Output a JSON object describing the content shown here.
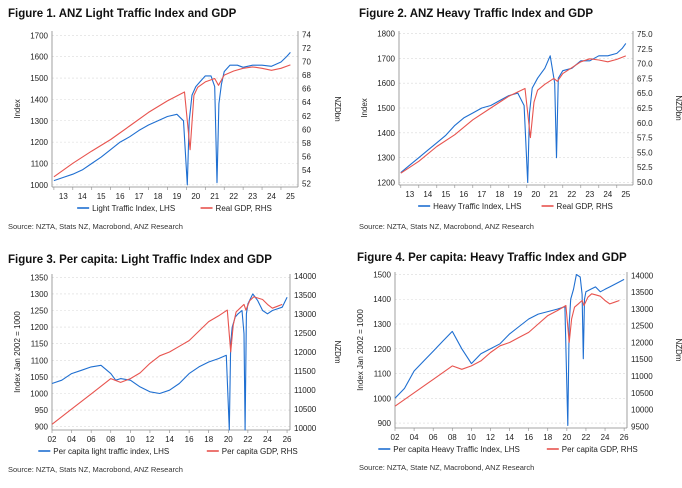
{
  "colors": {
    "lhs": "#1f6fd1",
    "rhs": "#e8544f",
    "grid": "#d9d9d9",
    "axis": "#888888"
  },
  "charts": [
    {
      "id": "fig1",
      "title": "Figure 1. ANZ Light Traffic Index and GDP",
      "source": "Source: NZTA, Stats NZ, Macrobond, ANZ Research",
      "legend": {
        "lhs": "Light Traffic Index, LHS",
        "rhs": "Real GDP, RHS"
      }
    },
    {
      "id": "fig2",
      "title": "Figure 2. ANZ Heavy Traffic Index and GDP",
      "source": "Source: NZTA, Stats NZ, Macrobond, ANZ Research",
      "legend": {
        "lhs": "Heavy Traffic Index, LHS",
        "rhs": "Real GDP, RHS"
      }
    },
    {
      "id": "fig3",
      "title": "Figure 3. Per capita: Light Traffic Index and GDP",
      "source": "Source: NZTA, Stats NZ, Macrobond, ANZ Research",
      "legend": {
        "lhs": "Per capita light traffic index, LHS",
        "rhs": "Per capita GDP, RHS"
      }
    },
    {
      "id": "fig4",
      "title": "Figure 4. Per capita: Heavy Traffic Index and GDP",
      "source": "Source: NZTA, State NZ, Macrobond, ANZ Research",
      "legend": {
        "lhs": "Per capita Heavy Traffic Index, LHS",
        "rhs": "Per capita GDP, RHS"
      }
    }
  ],
  "chart_data": [
    {
      "type": "line",
      "title": "Figure 1. ANZ Light Traffic Index and GDP",
      "ylabel": "Index",
      "y2label": "NZDbn",
      "xlim": [
        2012.9,
        2025.9
      ],
      "ylim": [
        990,
        1720
      ],
      "y2lim": [
        51.5,
        74.5
      ],
      "xticks": [
        2013,
        2014,
        2015,
        2016,
        2017,
        2018,
        2019,
        2020,
        2021,
        2022,
        2023,
        2024,
        2025
      ],
      "xticklabels": [
        "13",
        "14",
        "15",
        "16",
        "17",
        "18",
        "19",
        "20",
        "21",
        "22",
        "23",
        "24",
        "25"
      ],
      "yticks": [
        1000,
        1100,
        1200,
        1300,
        1400,
        1500,
        1600,
        1700
      ],
      "y2ticks": [
        52,
        54,
        56,
        58,
        60,
        62,
        64,
        66,
        68,
        70,
        72,
        74
      ],
      "series": [
        {
          "name": "Light Traffic Index, LHS",
          "axis": "left",
          "x": [
            2013.0,
            2013.5,
            2014.0,
            2014.5,
            2015.0,
            2015.5,
            2016.0,
            2016.5,
            2017.0,
            2017.5,
            2018.0,
            2018.5,
            2019.0,
            2019.5,
            2019.85,
            2020.05,
            2020.15,
            2020.3,
            2020.5,
            2020.7,
            2021.0,
            2021.3,
            2021.5,
            2021.62,
            2021.72,
            2021.85,
            2022.0,
            2022.3,
            2022.7,
            2023.0,
            2023.5,
            2024.0,
            2024.5,
            2025.0,
            2025.3,
            2025.5
          ],
          "y": [
            1020,
            1035,
            1050,
            1070,
            1100,
            1130,
            1165,
            1200,
            1225,
            1255,
            1280,
            1300,
            1320,
            1330,
            1300,
            1000,
            1300,
            1420,
            1460,
            1480,
            1510,
            1510,
            1460,
            1010,
            1380,
            1470,
            1530,
            1560,
            1560,
            1550,
            1560,
            1560,
            1555,
            1575,
            1600,
            1620
          ]
        },
        {
          "name": "Real GDP, RHS",
          "axis": "right",
          "x": [
            2013.0,
            2014.0,
            2015.0,
            2016.0,
            2017.0,
            2018.0,
            2019.0,
            2019.9,
            2020.2,
            2020.4,
            2020.6,
            2021.0,
            2021.5,
            2021.7,
            2022.0,
            2022.5,
            2023.0,
            2023.5,
            2024.0,
            2024.5,
            2025.0,
            2025.5
          ],
          "y": [
            53.0,
            55.0,
            56.8,
            58.5,
            60.5,
            62.5,
            64.2,
            65.5,
            57.0,
            65.0,
            66.2,
            67.0,
            67.5,
            66.5,
            68.0,
            68.6,
            69.0,
            69.2,
            69.0,
            68.7,
            69.0,
            69.5
          ]
        }
      ]
    },
    {
      "type": "line",
      "title": "Figure 2. ANZ Heavy Traffic Index and GDP",
      "ylabel": "Index",
      "y2label": "NZDbn",
      "xlim": [
        2012.9,
        2025.9
      ],
      "ylim": [
        1190,
        1810
      ],
      "y2lim": [
        49.5,
        75.5
      ],
      "xticks": [
        2013,
        2014,
        2015,
        2016,
        2017,
        2018,
        2019,
        2020,
        2021,
        2022,
        2023,
        2024,
        2025
      ],
      "xticklabels": [
        "13",
        "14",
        "15",
        "16",
        "17",
        "18",
        "19",
        "20",
        "21",
        "22",
        "23",
        "24",
        "25"
      ],
      "yticks": [
        1200,
        1300,
        1400,
        1500,
        1600,
        1700,
        1800
      ],
      "y2ticks": [
        50.0,
        52.5,
        55.0,
        57.5,
        60.0,
        62.5,
        65.0,
        67.5,
        70.0,
        72.5,
        75.0
      ],
      "series": [
        {
          "name": "Heavy Traffic Index, LHS",
          "axis": "left",
          "x": [
            2013.0,
            2013.5,
            2014.0,
            2014.5,
            2015.0,
            2015.5,
            2016.0,
            2016.5,
            2017.0,
            2017.5,
            2018.0,
            2018.5,
            2019.0,
            2019.5,
            2019.85,
            2020.05,
            2020.15,
            2020.3,
            2020.6,
            2020.8,
            2021.0,
            2021.3,
            2021.55,
            2021.65,
            2021.75,
            2022.0,
            2022.5,
            2023.0,
            2023.5,
            2024.0,
            2024.5,
            2025.0,
            2025.3,
            2025.5
          ],
          "y": [
            1240,
            1270,
            1300,
            1330,
            1360,
            1390,
            1430,
            1460,
            1480,
            1500,
            1510,
            1530,
            1550,
            1560,
            1510,
            1200,
            1480,
            1580,
            1620,
            1640,
            1660,
            1710,
            1600,
            1300,
            1620,
            1650,
            1660,
            1690,
            1690,
            1710,
            1710,
            1720,
            1740,
            1760
          ]
        },
        {
          "name": "Real GDP, RHS",
          "axis": "right",
          "x": [
            2013.0,
            2014.0,
            2015.0,
            2016.0,
            2017.0,
            2018.0,
            2019.0,
            2019.9,
            2020.2,
            2020.4,
            2020.6,
            2021.0,
            2021.5,
            2021.7,
            2022.0,
            2022.5,
            2023.0,
            2023.5,
            2024.0,
            2024.5,
            2025.0,
            2025.5
          ],
          "y": [
            51.5,
            53.5,
            56.0,
            58.0,
            60.5,
            62.5,
            64.5,
            65.8,
            57.5,
            63.5,
            65.5,
            66.5,
            67.5,
            67.0,
            68.3,
            69.3,
            70.3,
            70.8,
            70.6,
            70.3,
            70.7,
            71.3
          ]
        }
      ]
    },
    {
      "type": "line",
      "title": "Figure 3. Per capita: Light Traffic Index and GDP",
      "ylabel": "Index Jan 2002 = 1000",
      "y2label": "NZDm",
      "xlim": [
        2002.0,
        2026.3
      ],
      "ylim": [
        890,
        1360
      ],
      "y2lim": [
        9950,
        14050
      ],
      "xticks": [
        2002,
        2004,
        2006,
        2008,
        2010,
        2012,
        2014,
        2016,
        2018,
        2020,
        2022,
        2024,
        2026
      ],
      "xticklabels": [
        "02",
        "04",
        "06",
        "08",
        "10",
        "12",
        "14",
        "16",
        "18",
        "20",
        "22",
        "24",
        "26"
      ],
      "yticks": [
        900,
        950,
        1000,
        1050,
        1100,
        1150,
        1200,
        1250,
        1300,
        1350
      ],
      "y2ticks": [
        10000,
        10500,
        11000,
        11500,
        12000,
        12500,
        13000,
        13500,
        14000
      ],
      "series": [
        {
          "name": "Per capita light traffic index, LHS",
          "axis": "left",
          "x": [
            2002.0,
            2003.0,
            2004.0,
            2005.0,
            2006.0,
            2007.0,
            2008.0,
            2008.5,
            2009.0,
            2010.0,
            2011.0,
            2012.0,
            2013.0,
            2014.0,
            2015.0,
            2016.0,
            2017.0,
            2018.0,
            2019.0,
            2019.8,
            2020.1,
            2020.25,
            2020.4,
            2020.7,
            2021.0,
            2021.4,
            2021.6,
            2021.72,
            2021.85,
            2022.0,
            2022.5,
            2023.0,
            2023.5,
            2024.0,
            2024.5,
            2025.0,
            2025.5,
            2026.0
          ],
          "y": [
            1030,
            1040,
            1060,
            1070,
            1080,
            1085,
            1060,
            1040,
            1045,
            1040,
            1020,
            1005,
            1000,
            1010,
            1030,
            1060,
            1080,
            1095,
            1105,
            1115,
            890,
            1150,
            1200,
            1230,
            1240,
            1250,
            1180,
            890,
            1240,
            1270,
            1300,
            1280,
            1250,
            1240,
            1250,
            1255,
            1260,
            1290
          ]
        },
        {
          "name": "Per capita GDP, RHS",
          "axis": "right",
          "x": [
            2002.0,
            2004.0,
            2006.0,
            2008.0,
            2009.0,
            2010.0,
            2011.0,
            2012.0,
            2013.0,
            2014.0,
            2015.0,
            2016.0,
            2017.0,
            2018.0,
            2019.0,
            2019.9,
            2020.25,
            2020.5,
            2020.8,
            2021.2,
            2021.6,
            2021.8,
            2022.2,
            2022.6,
            2023.0,
            2023.5,
            2024.0,
            2024.5,
            2025.0,
            2025.5
          ],
          "y": [
            10100,
            10500,
            10900,
            11300,
            11200,
            11300,
            11450,
            11700,
            11900,
            12000,
            12150,
            12300,
            12550,
            12800,
            12950,
            13100,
            12000,
            12700,
            13050,
            13150,
            13250,
            13100,
            13350,
            13450,
            13420,
            13380,
            13250,
            13150,
            13200,
            13250
          ]
        }
      ]
    },
    {
      "type": "line",
      "title": "Figure 4. Per capita: Heavy Traffic Index and GDP",
      "ylabel": "Index Jan 2002 = 1000",
      "y2label": "NZDm",
      "xlim": [
        2002.0,
        2026.3
      ],
      "ylim": [
        880,
        1510
      ],
      "y2lim": [
        9450,
        14100
      ],
      "xticks": [
        2002,
        2004,
        2006,
        2008,
        2010,
        2012,
        2014,
        2016,
        2018,
        2020,
        2022,
        2024,
        2026
      ],
      "xticklabels": [
        "02",
        "04",
        "06",
        "08",
        "10",
        "12",
        "14",
        "16",
        "18",
        "20",
        "22",
        "24",
        "26"
      ],
      "yticks": [
        900,
        1000,
        1100,
        1200,
        1300,
        1400,
        1500
      ],
      "y2ticks": [
        9500,
        10000,
        10500,
        11000,
        11500,
        12000,
        12500,
        13000,
        13500,
        14000
      ],
      "series": [
        {
          "name": "Per capita Heavy Traffic Index, LHS",
          "axis": "left",
          "x": [
            2002.0,
            2003.0,
            2004.0,
            2005.0,
            2006.0,
            2007.0,
            2008.0,
            2009.0,
            2010.0,
            2011.0,
            2012.0,
            2013.0,
            2014.0,
            2015.0,
            2016.0,
            2017.0,
            2018.0,
            2019.0,
            2019.8,
            2020.1,
            2020.25,
            2020.4,
            2020.7,
            2021.0,
            2021.4,
            2021.6,
            2021.72,
            2021.85,
            2022.0,
            2022.5,
            2023.0,
            2023.5,
            2024.0,
            2024.5,
            2025.0,
            2025.5,
            2026.0
          ],
          "y": [
            1000,
            1040,
            1110,
            1150,
            1190,
            1230,
            1270,
            1200,
            1140,
            1180,
            1200,
            1220,
            1260,
            1290,
            1320,
            1340,
            1350,
            1360,
            1370,
            890,
            1300,
            1400,
            1440,
            1500,
            1490,
            1420,
            1160,
            1400,
            1430,
            1440,
            1450,
            1430,
            1440,
            1450,
            1460,
            1470,
            1480
          ]
        },
        {
          "name": "Per capita GDP, RHS",
          "axis": "right",
          "x": [
            2002.0,
            2004.0,
            2006.0,
            2008.0,
            2009.0,
            2010.0,
            2011.0,
            2012.0,
            2013.0,
            2014.0,
            2015.0,
            2016.0,
            2017.0,
            2018.0,
            2019.0,
            2019.9,
            2020.25,
            2020.5,
            2020.8,
            2021.2,
            2021.6,
            2021.8,
            2022.2,
            2022.6,
            2023.0,
            2023.5,
            2024.0,
            2024.5,
            2025.0,
            2025.5
          ],
          "y": [
            10100,
            10500,
            10900,
            11300,
            11200,
            11300,
            11450,
            11700,
            11900,
            12000,
            12150,
            12300,
            12550,
            12800,
            12950,
            13100,
            12000,
            12700,
            13050,
            13150,
            13250,
            13100,
            13350,
            13450,
            13420,
            13380,
            13250,
            13150,
            13200,
            13250
          ]
        }
      ]
    }
  ]
}
